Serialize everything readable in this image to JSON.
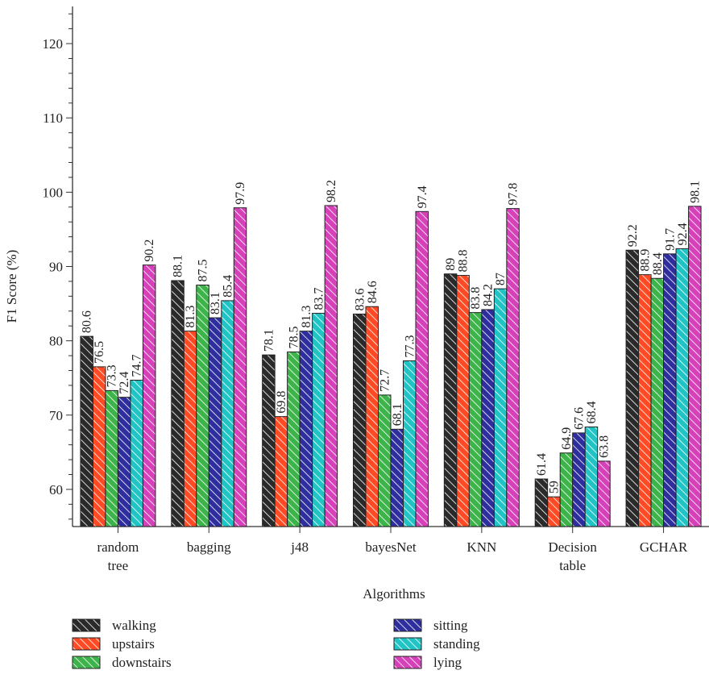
{
  "chart_data": {
    "type": "bar",
    "xlabel": "Algorithms",
    "ylabel": "F1 Score (%)",
    "ylim": [
      55,
      125
    ],
    "yticks": [
      60,
      70,
      80,
      90,
      100,
      110,
      120
    ],
    "grid": false,
    "legend_position": "bottom",
    "categories": [
      [
        "random",
        "tree"
      ],
      [
        "bagging"
      ],
      [
        "j48"
      ],
      [
        "bayesNet"
      ],
      [
        "KNN"
      ],
      [
        "Decision",
        "table"
      ],
      [
        "GCHAR"
      ]
    ],
    "series": [
      {
        "name": "walking",
        "color": "#2a2a2a",
        "values": [
          80.6,
          88.1,
          78.1,
          83.6,
          89.0,
          61.4,
          92.2
        ],
        "labels": [
          "80.6",
          "88.1",
          "78.1",
          "83.6",
          "89",
          "61.4",
          "92.2"
        ]
      },
      {
        "name": "upstairs",
        "color": "#ff4a24",
        "values": [
          76.5,
          81.3,
          69.8,
          84.6,
          88.8,
          59.0,
          88.9
        ],
        "labels": [
          "76.5",
          "81.3",
          "69.8",
          "84.6",
          "88.8",
          "59",
          "88.9"
        ]
      },
      {
        "name": "downstairs",
        "color": "#3cb44a",
        "values": [
          73.3,
          87.5,
          78.5,
          72.7,
          83.8,
          64.9,
          88.4
        ],
        "labels": [
          "73.3",
          "87.5",
          "78.5",
          "72.7",
          "83.8",
          "64.9",
          "88.4"
        ]
      },
      {
        "name": "sitting",
        "color": "#2e2e9e",
        "values": [
          72.4,
          83.1,
          81.3,
          68.1,
          84.2,
          67.6,
          91.7
        ],
        "labels": [
          "72.4",
          "83.1",
          "81.3",
          "68.1",
          "84.2",
          "67.6",
          "91.7"
        ]
      },
      {
        "name": "standing",
        "color": "#20c4c4",
        "values": [
          74.7,
          85.4,
          83.7,
          77.3,
          87.0,
          68.4,
          92.4
        ],
        "labels": [
          "74.7",
          "85.4",
          "83.7",
          "77.3",
          "87",
          "68.4",
          "92.4"
        ]
      },
      {
        "name": "lying",
        "color": "#d640b8",
        "values": [
          90.2,
          97.9,
          98.2,
          97.4,
          97.8,
          63.8,
          98.1
        ],
        "labels": [
          "90.2",
          "97.9",
          "98.2",
          "97.4",
          "97.8",
          "63.8",
          "98.1"
        ]
      }
    ]
  }
}
